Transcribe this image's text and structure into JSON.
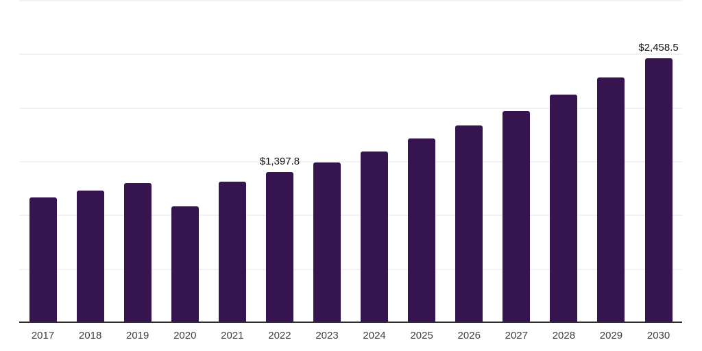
{
  "chart_data": {
    "type": "bar",
    "title": "",
    "xlabel": "",
    "ylabel": "",
    "categories": [
      "2017",
      "2018",
      "2019",
      "2020",
      "2021",
      "2022",
      "2023",
      "2024",
      "2025",
      "2026",
      "2027",
      "2028",
      "2029",
      "2030"
    ],
    "values": [
      1160,
      1226,
      1296,
      1079,
      1309,
      1397.8,
      1488,
      1590,
      1711,
      1833,
      1967,
      2120,
      2280,
      2458.5
    ],
    "data_labels": [
      "",
      "",
      "",
      "",
      "",
      "$1,397.8",
      "",
      "",
      "",
      "",
      "",
      "",
      "",
      "$2,458.5"
    ],
    "ylim": [
      0,
      3000
    ],
    "gridline_levels": [
      500,
      1000,
      1500,
      2000,
      2500,
      3000
    ],
    "grid": true,
    "legend": false,
    "colors": {
      "background": "#ffffff",
      "bar": "#351450",
      "gridline": "#f2f2f4",
      "axis_line": "#2e2e2e",
      "tick_label": "#3e3e3e",
      "value_label": "#121212"
    }
  }
}
